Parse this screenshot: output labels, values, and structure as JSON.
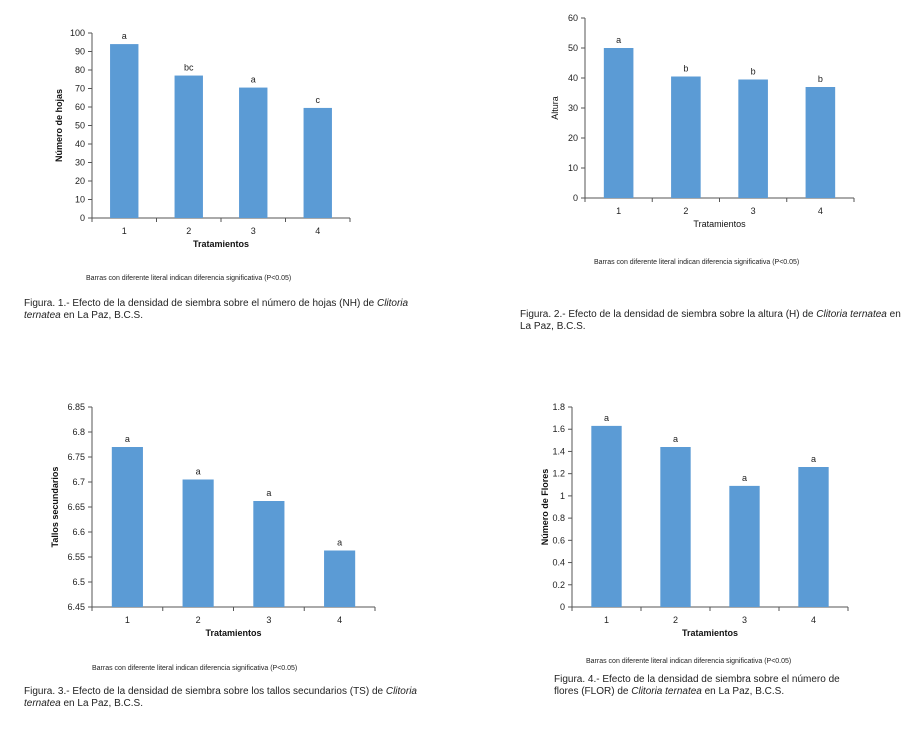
{
  "figures": [
    {
      "note": "Barras con diferente literal indican diferencia significativa (P<0.05)",
      "caption_pre": "Figura. 1.- Efecto de la densidad de siembra sobre el número de hojas (NH)  de ",
      "caption_species": "Clitoria ternatea",
      "caption_post": " en La Paz, B.C.S."
    },
    {
      "note": "Barras con diferente literal indican diferencia significativa (P<0.05)",
      "caption_pre": "Figura. 2.- Efecto de la densidad de siembra sobre la altura (H) de ",
      "caption_species": "Clitoria ternatea",
      "caption_post": " en La Paz, B.C.S."
    },
    {
      "note": "Barras con diferente literal indican diferencia significativa (P<0.05)",
      "caption_pre": "Figura. 3.- Efecto de la densidad de siembra sobre los tallos secundarios (TS) de ",
      "caption_species": "Clitoria ternatea",
      "caption_post": " en La Paz, B.C.S."
    },
    {
      "note": "Barras con diferente literal indican diferencia significativa (P<0.05)",
      "caption_pre": "Figura. 4.- Efecto de la densidad de siembra sobre el número de flores (FLOR) de ",
      "caption_species": "Clitoria ternatea",
      "caption_post": " en La Paz, B.C.S."
    }
  ],
  "chart_data": [
    {
      "type": "bar",
      "title": "",
      "xlabel": "Tratamientos",
      "ylabel": "Número de hojas",
      "categories": [
        "1",
        "2",
        "3",
        "4"
      ],
      "values": [
        94,
        77,
        70.5,
        59.5
      ],
      "letters": [
        "a",
        "bc",
        "a",
        "c"
      ],
      "ylim": [
        0,
        100
      ],
      "yticks": [
        0,
        10,
        20,
        30,
        40,
        50,
        60,
        70,
        80,
        90,
        100
      ],
      "ytick_labels": [
        "0",
        "10",
        "20",
        "30",
        "40",
        "50",
        "60",
        "70",
        "80",
        "90",
        "100"
      ],
      "bar_color": "#5b9bd5",
      "grid": false,
      "legend": "none"
    },
    {
      "type": "bar",
      "title": "",
      "xlabel": "Tratamientos",
      "ylabel": "Altura",
      "categories": [
        "1",
        "2",
        "3",
        "4"
      ],
      "values": [
        50,
        40.5,
        39.5,
        37
      ],
      "letters": [
        "a",
        "b",
        "b",
        "b"
      ],
      "ylim": [
        0,
        60
      ],
      "yticks": [
        0,
        10,
        20,
        30,
        40,
        50,
        60
      ],
      "ytick_labels": [
        "0",
        "10",
        "20",
        "30",
        "40",
        "50",
        "60"
      ],
      "bar_color": "#5b9bd5",
      "grid": false,
      "legend": "none"
    },
    {
      "type": "bar",
      "title": "",
      "xlabel": "Tratamientos",
      "ylabel": "Tallos secundarios",
      "categories": [
        "1",
        "2",
        "3",
        "4"
      ],
      "values": [
        6.77,
        6.705,
        6.662,
        6.563
      ],
      "letters": [
        "a",
        "a",
        "a",
        "a"
      ],
      "ylim": [
        6.45,
        6.85
      ],
      "yticks": [
        6.45,
        6.5,
        6.55,
        6.6,
        6.65,
        6.7,
        6.75,
        6.8,
        6.85
      ],
      "ytick_labels": [
        "6.45",
        "6.5",
        "6.55",
        "6.6",
        "6.65",
        "6.7",
        "6.75",
        "6.8",
        "6.85"
      ],
      "bar_color": "#5b9bd5",
      "grid": false,
      "legend": "none"
    },
    {
      "type": "bar",
      "title": "",
      "xlabel": "Tratamientos",
      "ylabel": "Número de Flores",
      "categories": [
        "1",
        "2",
        "3",
        "4"
      ],
      "values": [
        1.63,
        1.44,
        1.09,
        1.26
      ],
      "letters": [
        "a",
        "a",
        "a",
        "a"
      ],
      "ylim": [
        0,
        1.8
      ],
      "yticks": [
        0,
        0.2,
        0.4,
        0.6,
        0.8,
        1,
        1.2,
        1.4,
        1.6,
        1.8
      ],
      "ytick_labels": [
        "0",
        "0.2",
        "0.4",
        "0.6",
        "0.8",
        "1",
        "1.2",
        "1.4",
        "1.6",
        "1.8"
      ],
      "bar_color": "#5b9bd5",
      "grid": false,
      "legend": "none"
    }
  ]
}
